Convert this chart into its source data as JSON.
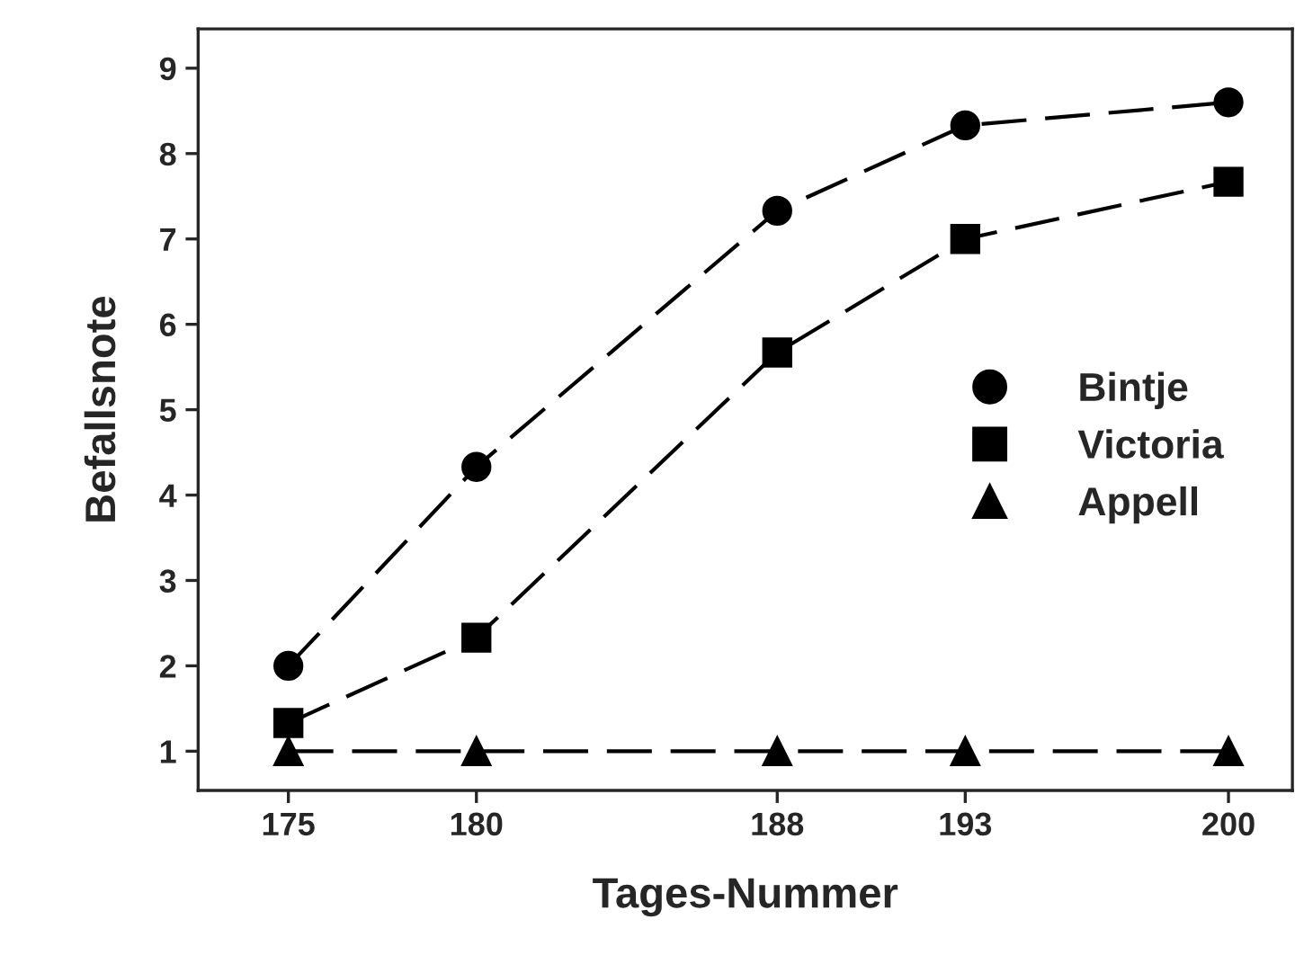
{
  "chart_data": {
    "type": "line",
    "xlabel": "Tages-Nummer",
    "ylabel": "Befallsnote",
    "x": [
      175,
      180,
      188,
      193,
      200
    ],
    "series": [
      {
        "name": "Bintje",
        "color": "#000000",
        "marker": "circle",
        "values": [
          2,
          4.33,
          7.33,
          8.33,
          8.6
        ]
      },
      {
        "name": "Victoria",
        "color": "#000000",
        "marker": "square",
        "values": [
          1.33,
          2.33,
          5.67,
          7,
          7.67
        ]
      },
      {
        "name": "Appell",
        "color": "#000000",
        "marker": "triangle",
        "values": [
          1,
          1,
          1,
          1,
          1
        ]
      }
    ],
    "line_style": "dashed",
    "legend": "right",
    "grid": false,
    "xlim": [
      172.6,
      201.7
    ],
    "xticks": [
      175,
      180,
      188,
      193,
      200
    ],
    "ylim": [
      0.54,
      9.46
    ],
    "yticks": [
      1,
      2,
      3,
      4,
      5,
      6,
      7,
      8,
      9
    ]
  }
}
